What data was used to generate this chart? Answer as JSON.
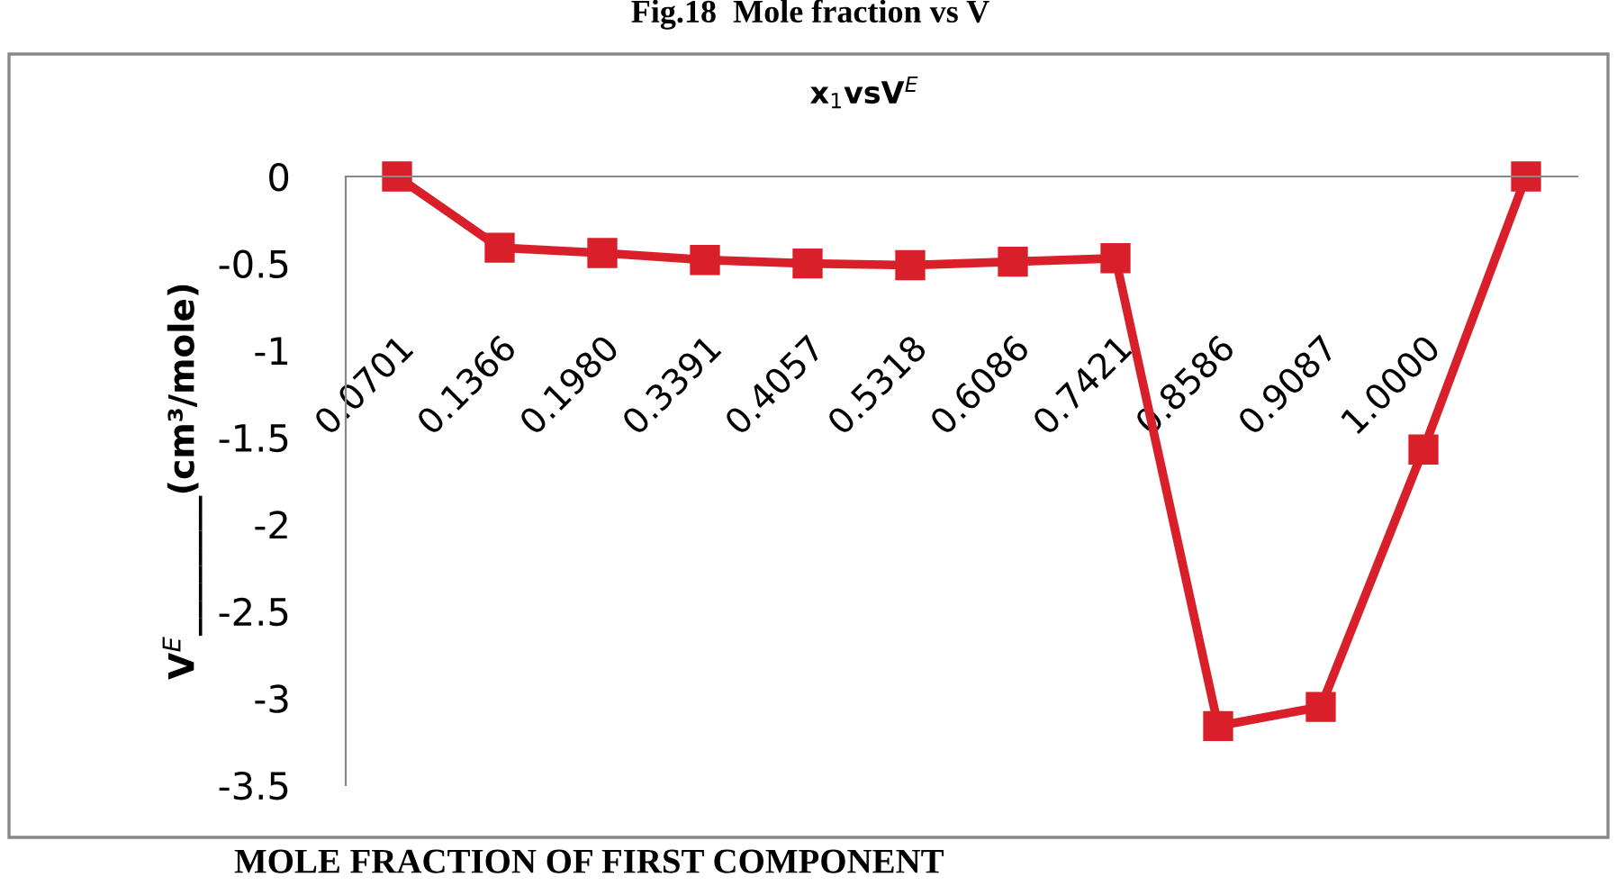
{
  "chart_data": {
    "type": "line",
    "title": "Fig.18  Mole fraction vs V",
    "subtitle": "x$_{1}$vsV$^{E}$",
    "xlabel": "MOLE FRACTION OF FIRST COMPONENT",
    "ylabel": "V$^{E}$________(cm³/mole)",
    "categories": [
      "0.0701",
      "0.1366",
      "0.1980",
      "0.3391",
      "0.4057",
      "0.5318",
      "0.6086",
      "0.7421",
      "0.8586",
      "0.9087",
      "1.0000",
      null
    ],
    "series": [
      {
        "color": "#d9202a",
        "values": [
          0,
          -0.41,
          -0.44,
          -0.48,
          -0.5,
          -0.51,
          -0.49,
          -0.47,
          -3.16,
          -3.05,
          -1.57,
          0
        ]
      }
    ],
    "ylim": [
      -3.5,
      0
    ],
    "yticks": [
      0,
      -0.5,
      -1,
      -1.5,
      -2,
      -2.5,
      -3,
      -3.5
    ],
    "grid": false,
    "marker": "square",
    "line_style": "solid"
  }
}
